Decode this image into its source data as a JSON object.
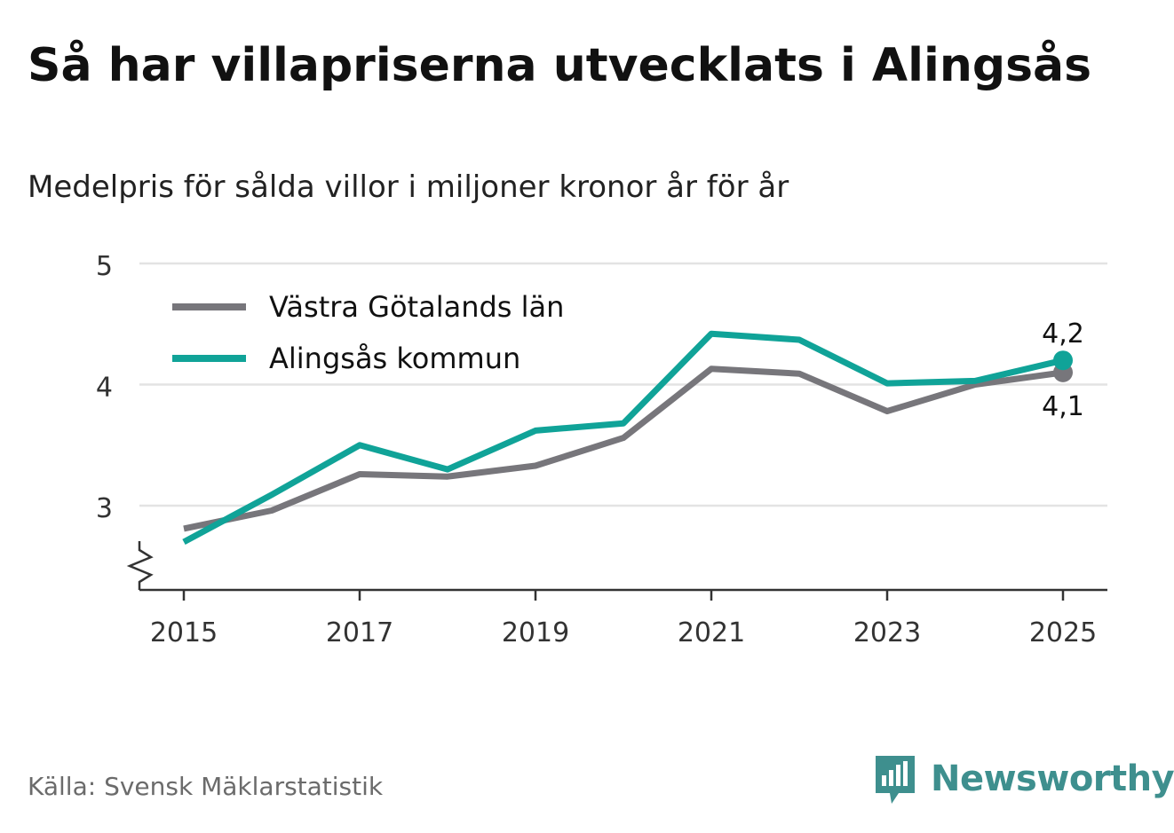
{
  "header": {
    "title": "Så har villapriserna utvecklats i Alingsås",
    "subtitle": "Medelpris för sålda villor i miljoner kronor år för år"
  },
  "footer": {
    "source": "Källa: Svensk Mäklarstatistik",
    "brand": "Newsworthy"
  },
  "colors": {
    "gray_series": "#77767b",
    "teal_series": "#10a398",
    "grid": "#e3e3e3",
    "axis": "#333333",
    "brand": "#3e8f8e"
  },
  "chart_data": {
    "type": "line",
    "title": "Så har villapriserna utvecklats i Alingsås",
    "subtitle": "Medelpris för sålda villor i miljoner kronor år för år",
    "xlabel": "",
    "ylabel": "",
    "x": [
      2015,
      2016,
      2017,
      2018,
      2019,
      2020,
      2021,
      2022,
      2023,
      2024,
      2025
    ],
    "x_tick_labels": [
      "2015",
      "2017",
      "2019",
      "2021",
      "2023",
      "2025"
    ],
    "y_tick_labels": [
      "3",
      "4",
      "5"
    ],
    "ylim": [
      2.3,
      5
    ],
    "y_axis_break": true,
    "grid": true,
    "legend_position": "top-left",
    "series": [
      {
        "name": "Västra Götalands län",
        "color": "#77767b",
        "values": [
          2.81,
          2.96,
          3.26,
          3.24,
          3.33,
          3.56,
          4.13,
          4.09,
          3.78,
          4.0,
          4.1
        ],
        "end_label": "4,1"
      },
      {
        "name": "Alingsås kommun",
        "color": "#10a398",
        "values": [
          2.7,
          3.09,
          3.5,
          3.3,
          3.62,
          3.68,
          4.42,
          4.37,
          4.01,
          4.03,
          4.2
        ],
        "end_label": "4,2"
      }
    ]
  }
}
